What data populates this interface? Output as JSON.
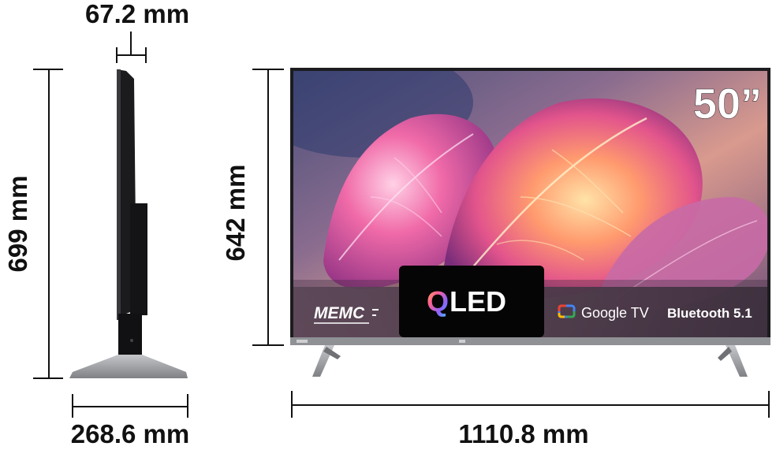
{
  "dimensions": {
    "depth": "67.2 mm",
    "height_total": "699 mm",
    "height_panel": "642 mm",
    "stand_depth": "268.6 mm",
    "width": "1110.8 mm"
  },
  "screen": {
    "size_badge": "50”",
    "features": {
      "memc": "MEMC",
      "qled_q": "Q",
      "qled_rest": "LED",
      "google_tv": "Google TV",
      "bluetooth": "Bluetooth 5.1"
    }
  },
  "colors": {
    "dimension_line": "#111111",
    "bezel": "#1c1c1f",
    "stand": "#9a9ca0",
    "feature_bar": "#3a2a36",
    "qled_panel": "#050505"
  },
  "icons": {
    "google_tv_logo": "google-tv-icon"
  }
}
